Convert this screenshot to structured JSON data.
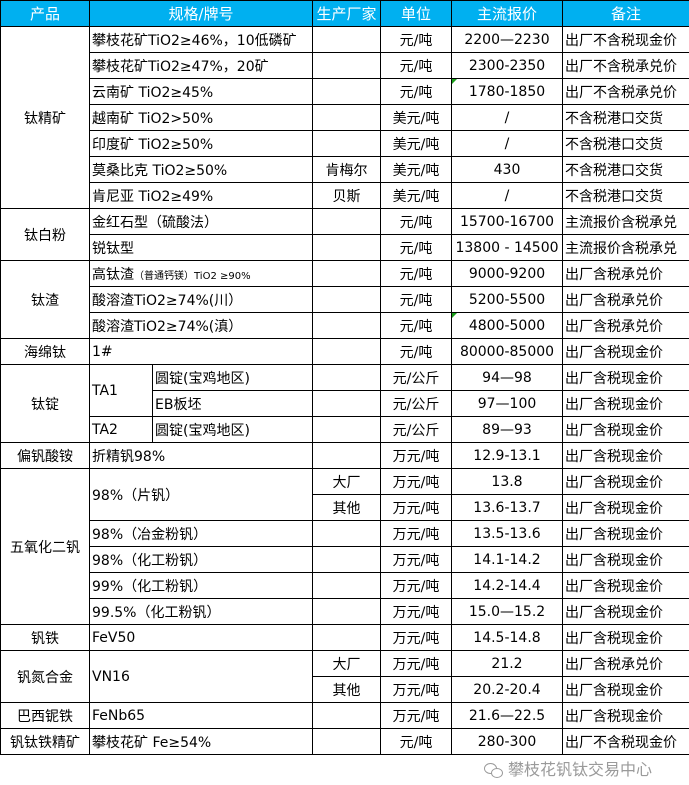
{
  "header": [
    "产品",
    "规格/牌号",
    "生产厂家",
    "单位",
    "主流报价",
    "备注"
  ],
  "colors": {
    "header_bg": "#00b0f0",
    "header_text": "#ffffff",
    "comment_marker": "#1a9e1a"
  },
  "rows": [
    {
      "product": "钛精矿",
      "spec": "攀枝花矿TiO2≥46%，10低磷矿",
      "maker": "",
      "unit": "元/吨",
      "price": "2200—2230",
      "note": "出厂不含税现金价"
    },
    {
      "spec": "攀枝花矿TiO2≥47%，20矿",
      "maker": "",
      "unit": "元/吨",
      "price": "2300-2350",
      "note": "出厂不含税承兑价"
    },
    {
      "spec": "云南矿 TiO2≥45%",
      "maker": "",
      "unit": "元/吨",
      "price": "1780-1850",
      "note": "出厂不含税承兑价"
    },
    {
      "spec": "越南矿 TiO2>50%",
      "maker": "",
      "unit": "美元/吨",
      "price": "/",
      "note": "不含税港口交货"
    },
    {
      "spec": "印度矿 TiO2≥50%",
      "maker": "",
      "unit": "美元/吨",
      "price": "/",
      "note": "不含税港口交货"
    },
    {
      "spec": "莫桑比克 TiO2≥50%",
      "maker": "肯梅尔",
      "unit": "美元/吨",
      "price": "430",
      "note": "不含税港口交货"
    },
    {
      "spec": "肯尼亚 TiO2≥49%",
      "maker": "贝斯",
      "unit": "美元/吨",
      "price": "/",
      "note": "不含税港口交货"
    },
    {
      "product": "钛白粉",
      "spec": "金红石型（硫酸法）",
      "maker": "",
      "unit": "元/吨",
      "price": "15700-16700",
      "note": "主流报价含税承兑"
    },
    {
      "spec": "锐钛型",
      "maker": "",
      "unit": "元/吨",
      "price": "13800 - 14500",
      "note": "主流报价含税承兑"
    },
    {
      "product": "钛渣",
      "spec": "高钛渣",
      "spec_small": "（普通钙镁）TiO2 ≥90%",
      "maker": "",
      "unit": "元/吨",
      "price": "9000-9200",
      "note": "出厂含税承兑价"
    },
    {
      "spec": "酸溶渣TiO2≥74%(川）",
      "maker": "",
      "unit": "元/吨",
      "price": "5200-5500",
      "note": "出厂含税承兑价"
    },
    {
      "spec": "酸溶渣TiO2≥74%(滇）",
      "maker": "",
      "unit": "元/吨",
      "price": "4800-5000",
      "note": "出厂含税承兑价"
    },
    {
      "product": "海绵钛",
      "spec": "1#",
      "maker": "",
      "unit": "元/吨",
      "price": "80000-85000",
      "note": "出厂含税现金价"
    },
    {
      "product": "钛锭",
      "spec": "TA1",
      "sub": "圆锭(宝鸡地区)",
      "maker": "",
      "unit": "元/公斤",
      "price": "94—98",
      "note": "出厂含税现金价"
    },
    {
      "sub": "EB板坯",
      "maker": "",
      "unit": "元/公斤",
      "price": "97—100",
      "note": "出厂含税现金价"
    },
    {
      "spec": "TA2",
      "sub": "圆锭(宝鸡地区)",
      "maker": "",
      "unit": "元/公斤",
      "price": "89—93",
      "note": "出厂含税现金价"
    },
    {
      "product": "偏钒酸铵",
      "spec": "折精钒98%",
      "maker": "",
      "unit": "万元/吨",
      "price": "12.9-13.1",
      "note": "出厂含税现金价"
    },
    {
      "product": "五氧化二钒",
      "spec": "98%（片钒）",
      "maker": "大厂",
      "unit": "万元/吨",
      "price": "13.8",
      "note": "出厂含税现金价"
    },
    {
      "maker": "其他",
      "unit": "万元/吨",
      "price": "13.6-13.7",
      "note": "出厂含税现金价"
    },
    {
      "spec": "98%（冶金粉钒）",
      "maker": "",
      "unit": "万元/吨",
      "price": "13.5-13.6",
      "note": "出厂含税现金价"
    },
    {
      "spec": "98%（化工粉钒）",
      "maker": "",
      "unit": "万元/吨",
      "price": "14.1-14.2",
      "note": "出厂含税现金价"
    },
    {
      "spec": "99%（化工粉钒）",
      "maker": "",
      "unit": "万元/吨",
      "price": "14.2-14.4",
      "note": "出厂含税现金价"
    },
    {
      "spec": "99.5%（化工粉钒）",
      "maker": "",
      "unit": "万元/吨",
      "price": "15.0—15.2",
      "note": "出厂含税现金价"
    },
    {
      "product": "钒铁",
      "spec": "FeV50",
      "maker": "",
      "unit": "万元/吨",
      "price": "14.5-14.8",
      "note": "出厂含税现金价"
    },
    {
      "product": "钒氮合金",
      "spec": "VN16",
      "maker": "大厂",
      "unit": "万元/吨",
      "price": "21.2",
      "note": "出厂含税承兑价"
    },
    {
      "maker": "其他",
      "unit": "万元/吨",
      "price": "20.2-20.4",
      "note": "出厂含税现金价"
    },
    {
      "product": "巴西铌铁",
      "spec": "FeNb65",
      "maker": "",
      "unit": "万元/吨",
      "price": "21.6—22.5",
      "note": "出厂含税现金价"
    },
    {
      "product": "钒钛铁精矿",
      "spec": "攀枝花矿 Fe≥54%",
      "maker": "",
      "unit": "元/吨",
      "price": "280-300",
      "note": "出厂不含税现金价"
    }
  ],
  "watermark": "攀枝花钒钛交易中心"
}
